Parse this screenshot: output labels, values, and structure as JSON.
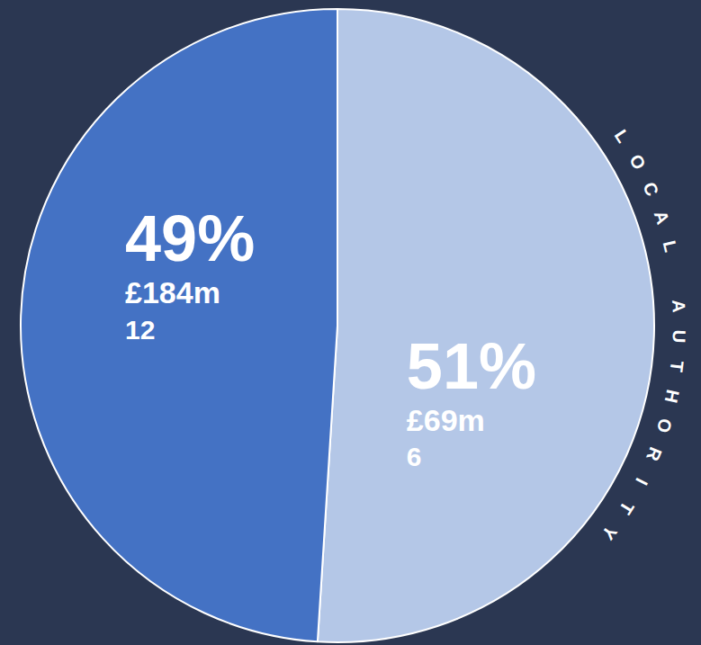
{
  "chart_data": {
    "type": "pie",
    "categories": [
      "LOCAL AUTHORITY",
      null
    ],
    "values": [
      51,
      49
    ],
    "value_labels": [
      "51%",
      "49%"
    ],
    "amount_labels": [
      "£69m",
      "£184m"
    ],
    "counts": [
      6,
      12
    ],
    "colors": [
      "#b4c7e7",
      "#4472c4"
    ],
    "data_labels": true
  }
}
